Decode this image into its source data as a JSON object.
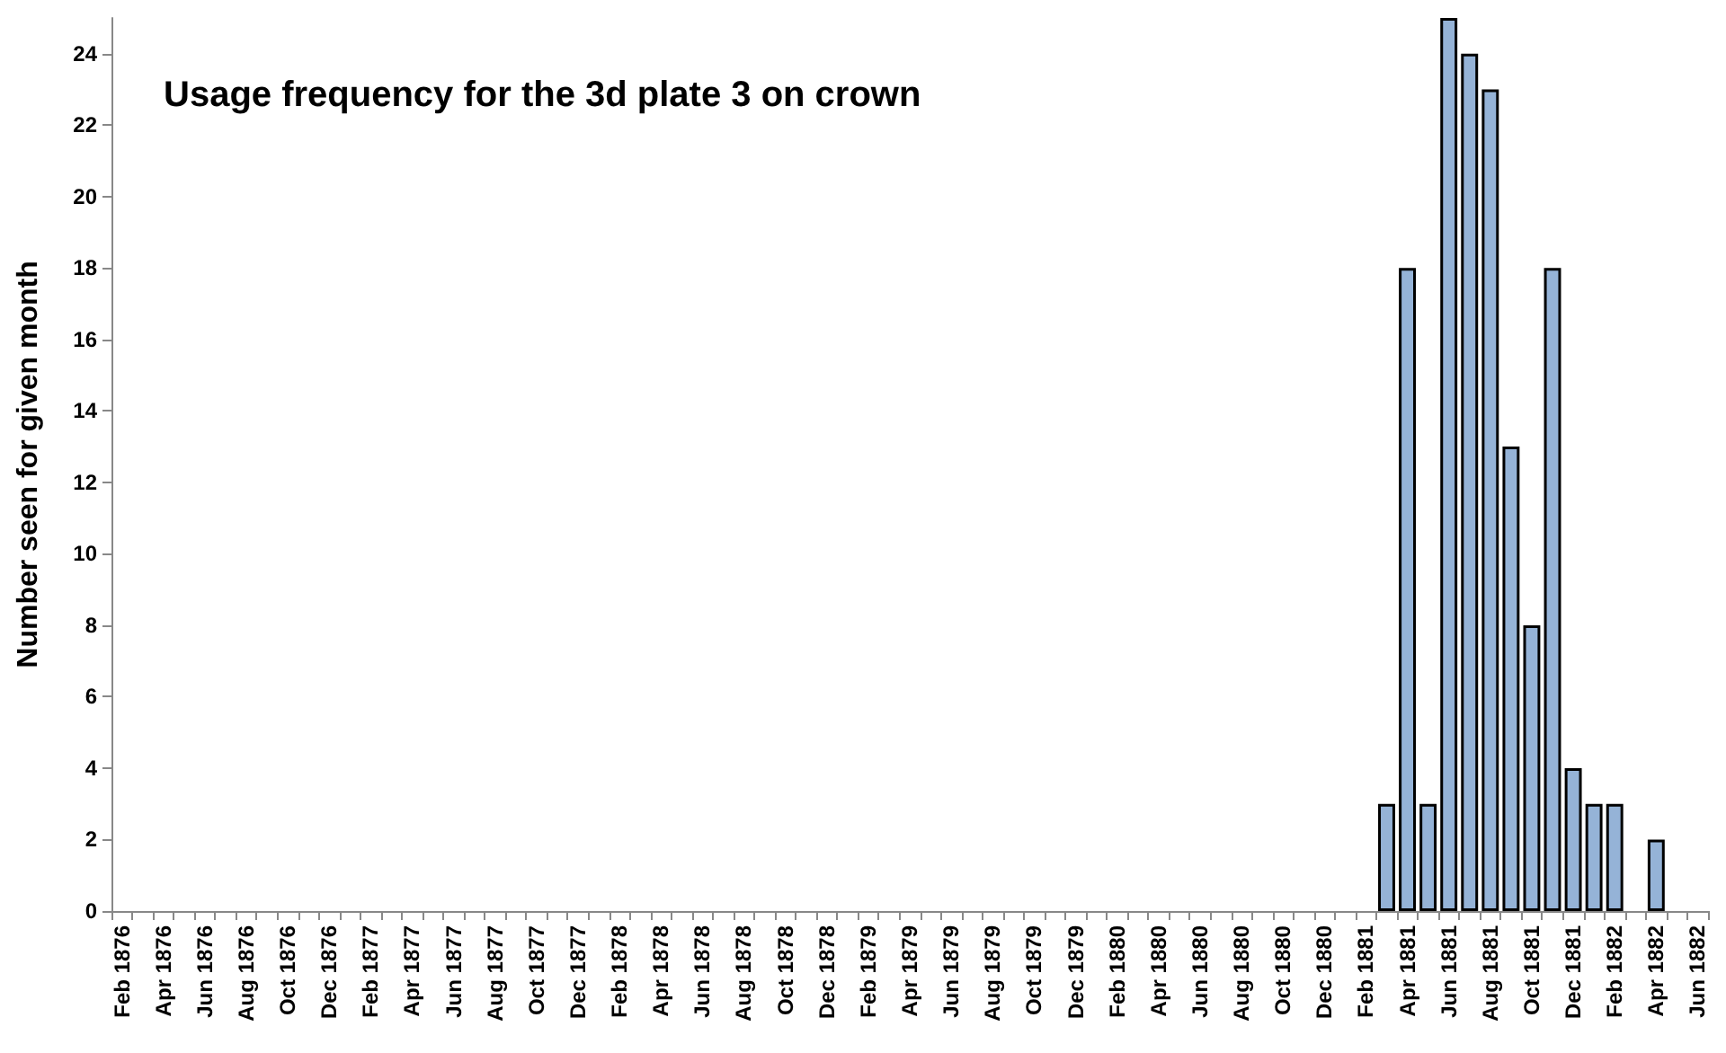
{
  "chart_data": {
    "type": "bar",
    "title": "Usage frequency for the 3d plate 3 on crown",
    "ylabel": "Number seen for given month",
    "categories": [
      "Feb 1876",
      null,
      "Apr 1876",
      null,
      "Jun 1876",
      null,
      "Aug 1876",
      null,
      "Oct 1876",
      null,
      "Dec 1876",
      null,
      "Feb 1877",
      null,
      "Apr 1877",
      null,
      "Jun 1877",
      null,
      "Aug 1877",
      null,
      "Oct 1877",
      null,
      "Dec 1877",
      null,
      "Feb 1878",
      null,
      "Apr 1878",
      null,
      "Jun 1878",
      null,
      "Aug 1878",
      null,
      "Oct 1878",
      null,
      "Dec 1878",
      null,
      "Feb 1879",
      null,
      "Apr 1879",
      null,
      "Jun 1879",
      null,
      "Aug 1879",
      null,
      "Oct 1879",
      null,
      "Dec 1879",
      null,
      "Feb 1880",
      null,
      "Apr 1880",
      null,
      "Jun 1880",
      null,
      "Aug 1880",
      null,
      "Oct 1880",
      null,
      "Dec 1880",
      null,
      "Feb 1881",
      null,
      "Apr 1881",
      null,
      "Jun 1881",
      null,
      "Aug 1881",
      null,
      "Oct 1881",
      null,
      "Dec 1881",
      null,
      "Feb 1882",
      null,
      "Apr 1882",
      null,
      "Jun 1882"
    ],
    "values": [
      null,
      null,
      null,
      null,
      null,
      null,
      null,
      null,
      null,
      null,
      null,
      null,
      null,
      null,
      null,
      null,
      null,
      null,
      null,
      null,
      null,
      null,
      null,
      null,
      null,
      null,
      null,
      null,
      null,
      null,
      null,
      null,
      null,
      null,
      null,
      null,
      null,
      null,
      null,
      null,
      null,
      null,
      null,
      null,
      null,
      null,
      null,
      null,
      null,
      null,
      null,
      null,
      null,
      null,
      null,
      null,
      null,
      null,
      null,
      null,
      null,
      3,
      18,
      3,
      25,
      24,
      23,
      13,
      8,
      18,
      4,
      3,
      3,
      null,
      2,
      null,
      null
    ],
    "color": "#95b3d7",
    "ylim": [
      0,
      25
    ],
    "yticks": [
      0,
      2,
      4,
      6,
      8,
      10,
      12,
      14,
      16,
      18,
      20,
      22,
      24
    ],
    "grid": false
  }
}
